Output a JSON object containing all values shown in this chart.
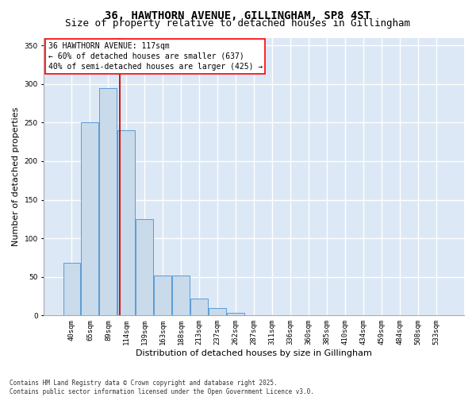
{
  "title": "36, HAWTHORN AVENUE, GILLINGHAM, SP8 4ST",
  "subtitle": "Size of property relative to detached houses in Gillingham",
  "xlabel": "Distribution of detached houses by size in Gillingham",
  "ylabel": "Number of detached properties",
  "categories": [
    "40sqm",
    "65sqm",
    "89sqm",
    "114sqm",
    "139sqm",
    "163sqm",
    "188sqm",
    "213sqm",
    "237sqm",
    "262sqm",
    "287sqm",
    "311sqm",
    "336sqm",
    "360sqm",
    "385sqm",
    "410sqm",
    "434sqm",
    "459sqm",
    "484sqm",
    "508sqm",
    "533sqm"
  ],
  "values": [
    68,
    250,
    295,
    240,
    125,
    52,
    52,
    22,
    10,
    3,
    0,
    0,
    0,
    0,
    0,
    0,
    0,
    0,
    0,
    0,
    0
  ],
  "bar_color": "#c9daea",
  "bar_edge_color": "#5b9bd5",
  "vline_color": "#cc0000",
  "annotation_text": "36 HAWTHORN AVENUE: 117sqm\n← 60% of detached houses are smaller (637)\n40% of semi-detached houses are larger (425) →",
  "annotation_box_color": "white",
  "annotation_box_edge_color": "red",
  "ylim": [
    0,
    360
  ],
  "yticks": [
    0,
    50,
    100,
    150,
    200,
    250,
    300,
    350
  ],
  "background_color": "#dce8f5",
  "grid_color": "white",
  "footer": "Contains HM Land Registry data © Crown copyright and database right 2025.\nContains public sector information licensed under the Open Government Licence v3.0.",
  "title_fontsize": 10,
  "subtitle_fontsize": 9,
  "tick_fontsize": 6.5,
  "ylabel_fontsize": 8,
  "xlabel_fontsize": 8,
  "footer_fontsize": 5.5,
  "annotation_fontsize": 7,
  "vline_x": 2.62
}
